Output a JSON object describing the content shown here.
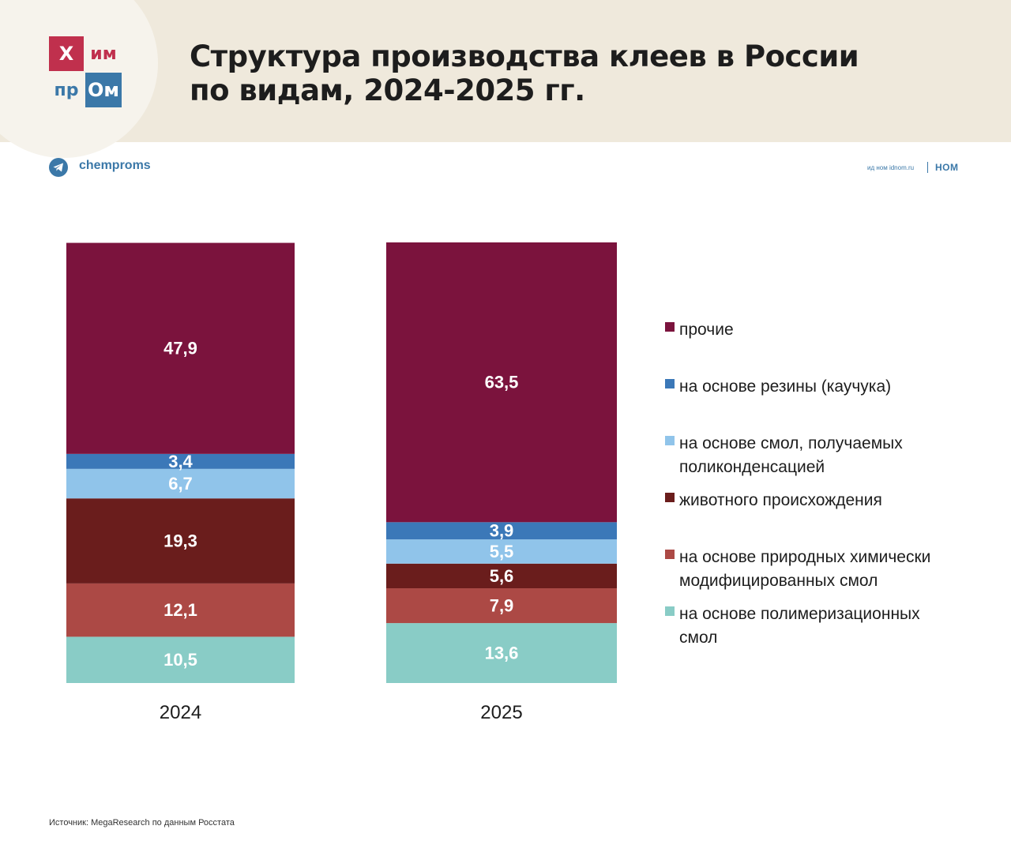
{
  "header": {
    "logo": [
      "Х",
      "им",
      "пр",
      "Ом"
    ],
    "title_lines": [
      "Структура производства клеев в России",
      "по видам, 2024-2025 гг."
    ]
  },
  "channel": {
    "name": "chemproms",
    "icon": "telegram-icon"
  },
  "publisher": {
    "url": "ид ном idnom.ru",
    "logo": "НОМ"
  },
  "colors": {
    "prochie": "#7b133d",
    "rezina": "#3b78b8",
    "polikond": "#90c4ea",
    "zhivotnoe": "#6a1d1c",
    "prirodnye": "#ac4945",
    "polimer": "#89ccc6"
  },
  "chart_data": {
    "type": "bar",
    "stacked": true,
    "categories": [
      "2024",
      "2025"
    ],
    "series": [
      {
        "name": "на основе полимеризационных смол",
        "key": "polimer",
        "values": [
          10.5,
          13.6
        ],
        "labels": [
          "10,5",
          "13,6"
        ]
      },
      {
        "name": "на основе природных химически модифицированных смол",
        "key": "prirodnye",
        "values": [
          12.1,
          7.9
        ],
        "labels": [
          "12,1",
          "7,9"
        ]
      },
      {
        "name": "животного происхождения",
        "key": "zhivotnoe",
        "values": [
          19.3,
          5.6
        ],
        "labels": [
          "19,3",
          "5,6"
        ]
      },
      {
        "name": "на основе смол, получаемых поликонденсацией",
        "key": "polikond",
        "values": [
          6.7,
          5.5
        ],
        "labels": [
          "6,7",
          "5,5"
        ]
      },
      {
        "name": "на основе резины (каучука)",
        "key": "rezina",
        "values": [
          3.4,
          3.9
        ],
        "labels": [
          "3,4",
          "3,9"
        ]
      },
      {
        "name": "прочие",
        "key": "prochie",
        "values": [
          47.9,
          63.5
        ],
        "labels": [
          "47,9",
          "63,5"
        ]
      }
    ],
    "ylim": [
      0,
      100
    ],
    "legend_position": "right"
  },
  "legend": [
    {
      "key": "prochie",
      "text": "прочие"
    },
    {
      "key": "rezina",
      "text": "на основе резины (каучука)"
    },
    {
      "key": "polikond",
      "text": "на основе смол, получаемых\nполиконденсацией"
    },
    {
      "key": "zhivotnoe",
      "text": "животного происхождения"
    },
    {
      "key": "prirodnye",
      "text": "на основе природных химически\nмодифицированных смол"
    },
    {
      "key": "polimer",
      "text": "на основе полимеризационных\nсмол"
    }
  ],
  "source": "Источник: MegaResearch по данным Росстата"
}
